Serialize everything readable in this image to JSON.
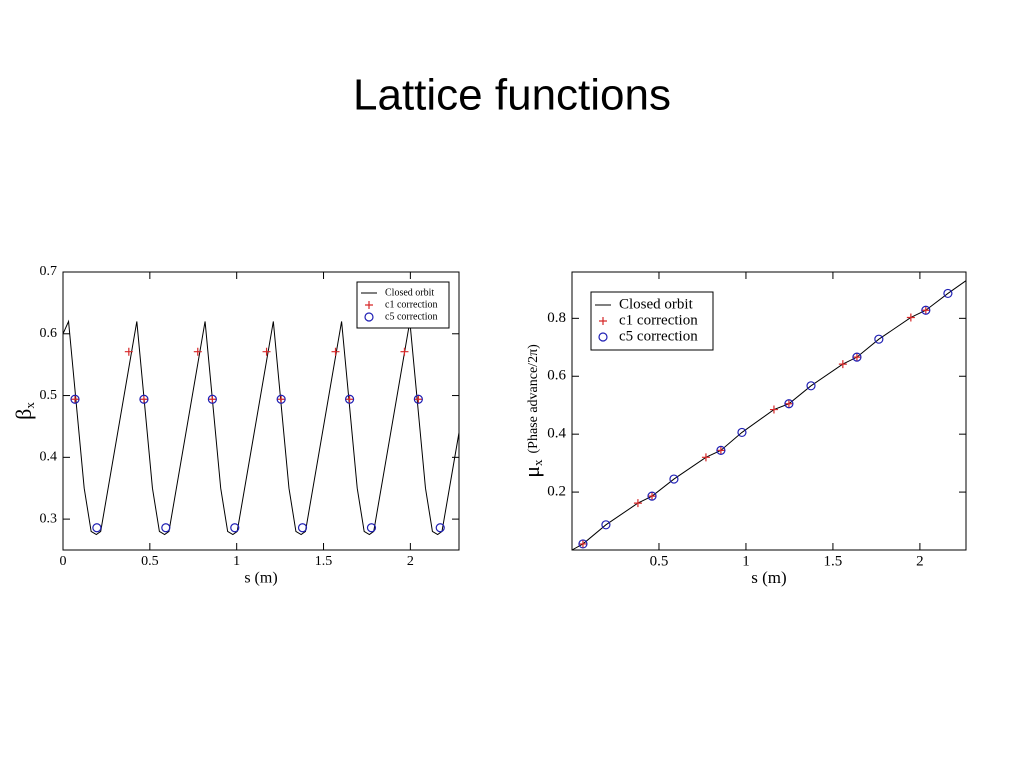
{
  "title": "Lattice functions",
  "chart_data": [
    {
      "type": "line",
      "xlabel": "s (m)",
      "ylabel": {
        "symbol": "β",
        "sub": "x"
      },
      "xlim": [
        0,
        2.28
      ],
      "ylim": [
        0.25,
        0.7
      ],
      "xticks": [
        0,
        0.5,
        1,
        1.5,
        2
      ],
      "yticks": [
        0.3,
        0.4,
        0.5,
        0.6,
        0.7
      ],
      "legend": "upper right",
      "series": [
        {
          "name": "Closed orbit",
          "color": "#000000",
          "style": "line",
          "x": [
            0,
            0.032,
            0.072,
            0.122,
            0.162,
            0.192,
            0.217,
            0.425,
            0.465,
            0.515,
            0.555,
            0.585,
            0.61,
            0.818,
            0.858,
            0.908,
            0.948,
            0.978,
            1.003,
            1.211,
            1.251,
            1.301,
            1.341,
            1.371,
            1.396,
            1.604,
            1.644,
            1.694,
            1.734,
            1.764,
            1.789,
            1.997,
            2.037,
            2.087,
            2.127,
            2.157,
            2.182,
            2.28
          ],
          "values": [
            0.6,
            0.62,
            0.5,
            0.35,
            0.28,
            0.275,
            0.28,
            0.62,
            0.5,
            0.35,
            0.28,
            0.275,
            0.28,
            0.62,
            0.5,
            0.35,
            0.28,
            0.275,
            0.28,
            0.62,
            0.5,
            0.35,
            0.28,
            0.275,
            0.28,
            0.62,
            0.5,
            0.35,
            0.28,
            0.275,
            0.28,
            0.62,
            0.5,
            0.35,
            0.28,
            0.275,
            0.28,
            0.44
          ]
        },
        {
          "name": "c1 correction",
          "color": "#d62728",
          "style": "plus",
          "x": [
            0.069,
            0.379,
            0.466,
            0.776,
            0.86,
            1.172,
            1.256,
            1.569,
            1.65,
            1.966,
            2.046
          ],
          "values": [
            0.494,
            0.571,
            0.494,
            0.571,
            0.494,
            0.571,
            0.494,
            0.571,
            0.494,
            0.571,
            0.494
          ]
        },
        {
          "name": "c5 correction",
          "color": "#1f1fb4",
          "style": "circle",
          "x": [
            0.069,
            0.195,
            0.466,
            0.592,
            0.86,
            0.989,
            1.256,
            1.379,
            1.65,
            1.776,
            2.046,
            2.172
          ],
          "values": [
            0.494,
            0.286,
            0.494,
            0.286,
            0.494,
            0.286,
            0.494,
            0.286,
            0.494,
            0.286,
            0.494,
            0.286
          ]
        }
      ]
    },
    {
      "type": "line",
      "xlabel": "s (m)",
      "ylabel": {
        "symbol": "μ",
        "sub": "x",
        "text": "(Phase advance/2π)"
      },
      "xlim": [
        0,
        2.265
      ],
      "ylim": [
        0,
        0.96
      ],
      "xticks": [
        0.5,
        1,
        1.5,
        2
      ],
      "yticks": [
        0.2,
        0.4,
        0.6,
        0.8
      ],
      "legend": "upper left",
      "series": [
        {
          "name": "Closed orbit",
          "color": "#000000",
          "style": "line",
          "x": [
            0,
            0.063,
            0.195,
            0.379,
            0.46,
            0.586,
            0.77,
            0.856,
            0.977,
            1.161,
            1.247,
            1.374,
            1.557,
            1.638,
            1.764,
            1.948,
            2.034,
            2.161,
            2.265
          ],
          "values": [
            0,
            0.021,
            0.087,
            0.162,
            0.186,
            0.245,
            0.32,
            0.344,
            0.406,
            0.485,
            0.505,
            0.567,
            0.642,
            0.666,
            0.728,
            0.803,
            0.828,
            0.886,
            0.93
          ]
        },
        {
          "name": "c1 correction",
          "color": "#d62728",
          "style": "plus",
          "x": [
            0.063,
            0.379,
            0.46,
            0.77,
            0.856,
            1.161,
            1.247,
            1.557,
            1.638,
            1.948,
            2.034
          ],
          "values": [
            0.021,
            0.162,
            0.186,
            0.32,
            0.344,
            0.485,
            0.505,
            0.642,
            0.666,
            0.803,
            0.828
          ]
        },
        {
          "name": "c5 correction",
          "color": "#1f1fb4",
          "style": "circle",
          "x": [
            0.063,
            0.195,
            0.46,
            0.586,
            0.856,
            0.977,
            1.247,
            1.374,
            1.638,
            1.764,
            2.034,
            2.161
          ],
          "values": [
            0.021,
            0.087,
            0.186,
            0.245,
            0.344,
            0.406,
            0.505,
            0.567,
            0.666,
            0.728,
            0.828,
            0.886
          ]
        }
      ]
    }
  ]
}
